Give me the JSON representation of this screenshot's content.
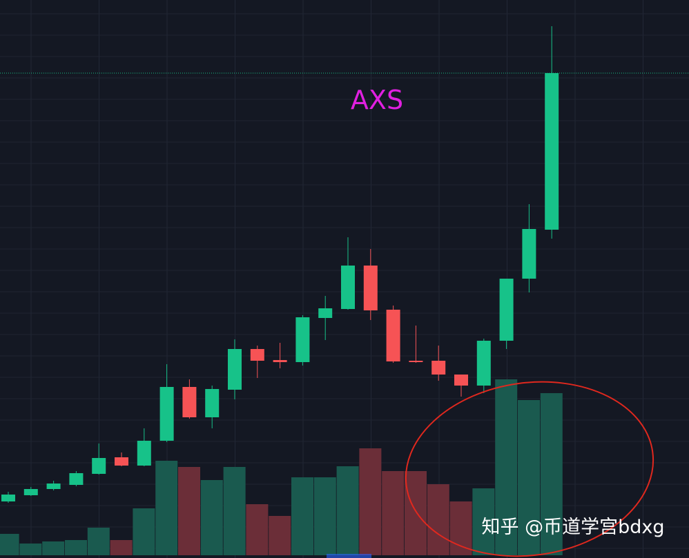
{
  "chart_data": {
    "type": "candlestick",
    "title": "AXS",
    "watermark": "知乎 @币道学宫bdxg",
    "open": [
      82,
      91,
      100,
      106,
      122,
      146,
      134,
      170,
      248,
      204,
      244,
      303,
      287,
      284,
      348,
      361,
      424,
      360,
      286,
      286,
      266,
      250,
      315,
      405,
      476
    ],
    "high": [
      96,
      103,
      112,
      126,
      166,
      153,
      188,
      281,
      259,
      250,
      317,
      308,
      312,
      352,
      380,
      465,
      448,
      366,
      337,
      308,
      266,
      318,
      405,
      513,
      771
    ],
    "low": [
      80,
      90,
      98,
      104,
      121,
      133,
      133,
      168,
      202,
      188,
      230,
      261,
      275,
      279,
      316,
      360,
      345,
      283,
      283,
      257,
      234,
      239,
      303,
      385,
      463
    ],
    "close": [
      92,
      100,
      108,
      123,
      145,
      134,
      170,
      248,
      204,
      245,
      303,
      286,
      284,
      349,
      362,
      424,
      359,
      285,
      284,
      266,
      250,
      315,
      405,
      477,
      703
    ],
    "volumes": [
      31,
      17,
      20,
      22,
      40,
      22,
      68,
      137,
      128,
      109,
      128,
      74,
      57,
      113,
      113,
      129,
      155,
      122,
      122,
      103,
      78,
      97,
      255,
      225,
      235
    ],
    "ylim": [
      0,
      809
    ],
    "volume_lim": [
      0,
      805
    ],
    "up_color": "#17c289",
    "down_color": "#f65355",
    "volume_up_color": "#1a5a4f",
    "volume_down_color": "#6b2e38",
    "title_color": "#e020e0"
  }
}
